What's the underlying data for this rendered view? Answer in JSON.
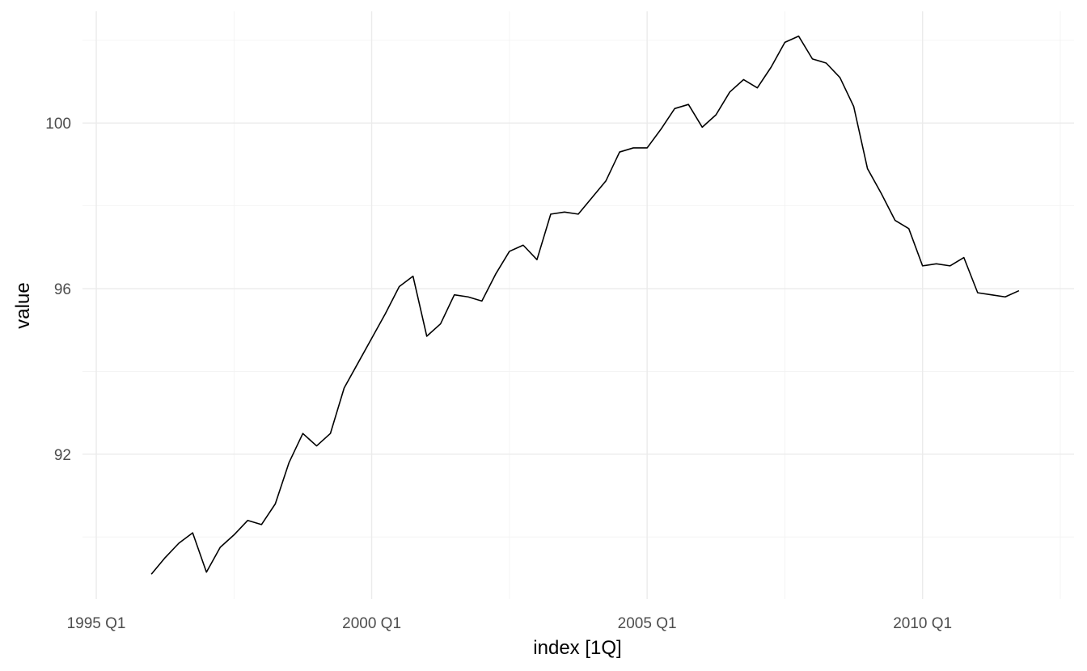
{
  "chart_data": {
    "type": "line",
    "title": "",
    "xlabel": "index [1Q]",
    "ylabel": "value",
    "x_ticks": [
      "1995 Q1",
      "2000 Q1",
      "2005 Q1",
      "2010 Q1"
    ],
    "y_ticks": [
      92,
      96,
      100
    ],
    "xlim": [
      "1994 Q4",
      "2012 Q4"
    ],
    "ylim": [
      88.5,
      102.7
    ],
    "grid": true,
    "legend": "none",
    "colors": {
      "line": "#000000",
      "grid": "#ebebeb",
      "text": "#4d4d4d"
    },
    "series": [
      {
        "x": [
          "1996 Q1",
          "1996 Q2",
          "1996 Q3",
          "1996 Q4",
          "1997 Q1",
          "1997 Q2",
          "1997 Q3",
          "1997 Q4",
          "1998 Q1",
          "1998 Q2",
          "1998 Q3",
          "1998 Q4",
          "1999 Q1",
          "1999 Q2",
          "1999 Q3",
          "1999 Q4",
          "2000 Q1",
          "2000 Q2",
          "2000 Q3",
          "2000 Q4",
          "2001 Q1",
          "2001 Q2",
          "2001 Q3",
          "2001 Q4",
          "2002 Q1",
          "2002 Q2",
          "2002 Q3",
          "2002 Q4",
          "2003 Q1",
          "2003 Q2",
          "2003 Q3",
          "2003 Q4",
          "2004 Q1",
          "2004 Q2",
          "2004 Q3",
          "2004 Q4",
          "2005 Q1",
          "2005 Q2",
          "2005 Q3",
          "2005 Q4",
          "2006 Q1",
          "2006 Q2",
          "2006 Q3",
          "2006 Q4",
          "2007 Q1",
          "2007 Q2",
          "2007 Q3",
          "2007 Q4",
          "2008 Q1",
          "2008 Q2",
          "2008 Q3",
          "2008 Q4",
          "2009 Q1",
          "2009 Q2",
          "2009 Q3",
          "2009 Q4",
          "2010 Q1",
          "2010 Q2",
          "2010 Q3",
          "2010 Q4",
          "2011 Q1",
          "2011 Q2",
          "2011 Q3",
          "2011 Q4"
        ],
        "values": [
          89.1,
          89.5,
          89.85,
          90.1,
          89.15,
          89.75,
          90.05,
          90.4,
          90.3,
          90.8,
          91.8,
          92.5,
          92.2,
          92.5,
          93.6,
          94.2,
          94.8,
          95.4,
          96.05,
          96.3,
          94.85,
          95.15,
          95.85,
          95.8,
          95.7,
          96.35,
          96.9,
          97.05,
          96.7,
          97.8,
          97.85,
          97.8,
          98.2,
          98.6,
          99.3,
          99.4,
          99.4,
          99.85,
          100.35,
          100.45,
          99.9,
          100.2,
          100.75,
          101.05,
          100.85,
          101.35,
          101.95,
          102.1,
          101.55,
          101.45,
          101.1,
          100.4,
          98.9,
          98.3,
          97.65,
          97.45,
          96.55,
          96.6,
          96.55,
          96.75,
          95.9,
          95.85,
          95.8,
          95.95
        ]
      }
    ]
  }
}
